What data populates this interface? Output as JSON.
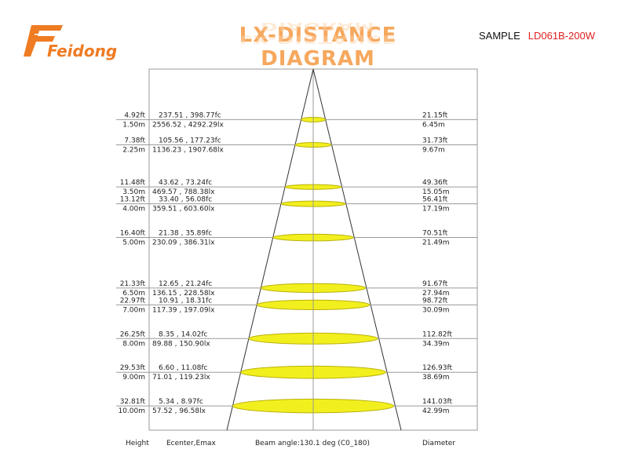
{
  "header": {
    "logo_text": "Feidong",
    "title": "LX-DISTANCE DIAGRAM",
    "sample_label": "SAMPLE",
    "model": "LD061B-200W"
  },
  "colors": {
    "logo": "#ef7b22",
    "title": "#f6a85e",
    "model": "#e0201f",
    "beam_fill": "#f2ef1e",
    "beam_stroke": "#b9b20d",
    "grid": "#9a9a9a"
  },
  "footer": {
    "height": "Height",
    "ecenter": "Ecenter,Emax",
    "beam_angle": "Beam angle:130.1 deg (C0_180)",
    "diameter": "Diameter"
  },
  "chart_data": {
    "type": "table",
    "rows": [
      {
        "height_ft": "4.92ft",
        "height_m": "1.50m",
        "fc": "237.51 , 398.77fc",
        "lx": "2556.52 , 4292.29lx",
        "diameter_ft": "21.15ft",
        "diameter_m": "6.45m"
      },
      {
        "height_ft": "7.38ft",
        "height_m": "2.25m",
        "fc": "105.56 , 177.23fc",
        "lx": "1136.23 , 1907.68lx",
        "diameter_ft": "31.73ft",
        "diameter_m": "9.67m"
      },
      {
        "height_ft": "11.48ft",
        "height_m": "3.50m",
        "fc": "43.62 , 73.24fc",
        "lx": "469.57 , 788.38lx",
        "diameter_ft": "49.36ft",
        "diameter_m": "15.05m"
      },
      {
        "height_ft": "13.12ft",
        "height_m": "4.00m",
        "fc": "33.40 , 56.08fc",
        "lx": "359.51 , 603.60lx",
        "diameter_ft": "56.41ft",
        "diameter_m": "17.19m"
      },
      {
        "height_ft": "16.40ft",
        "height_m": "5.00m",
        "fc": "21.38 , 35.89fc",
        "lx": "230.09 , 386.31lx",
        "diameter_ft": "70.51ft",
        "diameter_m": "21.49m"
      },
      {
        "height_ft": "21.33ft",
        "height_m": "6.50m",
        "fc": "12.65 , 21.24fc",
        "lx": "136.15 , 228.58lx",
        "diameter_ft": "91.67ft",
        "diameter_m": "27.94m"
      },
      {
        "height_ft": "22.97ft",
        "height_m": "7.00m",
        "fc": "10.91 , 18.31fc",
        "lx": "117.39 , 197.09lx",
        "diameter_ft": "98.72ft",
        "diameter_m": "30.09m"
      },
      {
        "height_ft": "26.25ft",
        "height_m": "8.00m",
        "fc": "8.35 , 14.02fc",
        "lx": "89.88 , 150.90lx",
        "diameter_ft": "112.82ft",
        "diameter_m": "34.39m"
      },
      {
        "height_ft": "29.53ft",
        "height_m": "9.00m",
        "fc": "6.60 , 11.08fc",
        "lx": "71.01 , 119.23lx",
        "diameter_ft": "126.93ft",
        "diameter_m": "38.69m"
      },
      {
        "height_ft": "32.81ft",
        "height_m": "10.00m",
        "fc": "5.34 , 8.97fc",
        "lx": "57.52 , 96.58lx",
        "diameter_ft": "141.03ft",
        "diameter_m": "42.99m"
      }
    ]
  }
}
